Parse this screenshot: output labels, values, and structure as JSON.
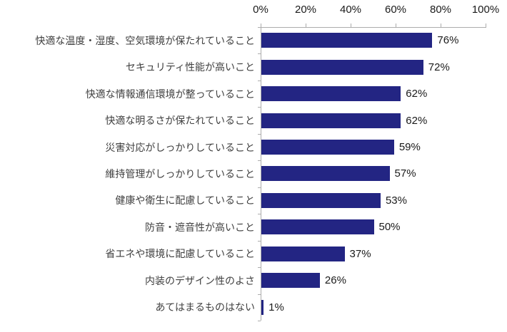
{
  "chart_data": {
    "type": "bar",
    "orientation": "horizontal",
    "title": "",
    "categories": [
      "快適な温度・湿度、空気環境が保たれていること",
      "セキュリティ性能が高いこと",
      "快適な情報通信環境が整っていること",
      "快適な明るさが保たれていること",
      "災害対応がしっかりしていること",
      "維持管理がしっかりしていること",
      "健康や衛生に配慮していること",
      "防音・遮音性が高いこと",
      "省エネや環境に配慮していること",
      "内装のデザイン性のよさ",
      "あてはまるものはない"
    ],
    "values": [
      76,
      72,
      62,
      62,
      59,
      57,
      53,
      50,
      37,
      26,
      1
    ],
    "value_labels": [
      "76%",
      "72%",
      "62%",
      "62%",
      "59%",
      "57%",
      "53%",
      "50%",
      "37%",
      "26%",
      "1%"
    ],
    "x_axis": {
      "position": "top",
      "min": 0,
      "max": 100,
      "tick_values": [
        0,
        20,
        40,
        60,
        80,
        100
      ],
      "ticks": [
        "0%",
        "20%",
        "40%",
        "60%",
        "80%",
        "100%"
      ]
    },
    "legend": "none",
    "grid": "off",
    "colors": {
      "bar": "#232583",
      "axis": "#acacac",
      "category_text": "#3f3f3f",
      "value_text": "#1a1a1a"
    }
  }
}
